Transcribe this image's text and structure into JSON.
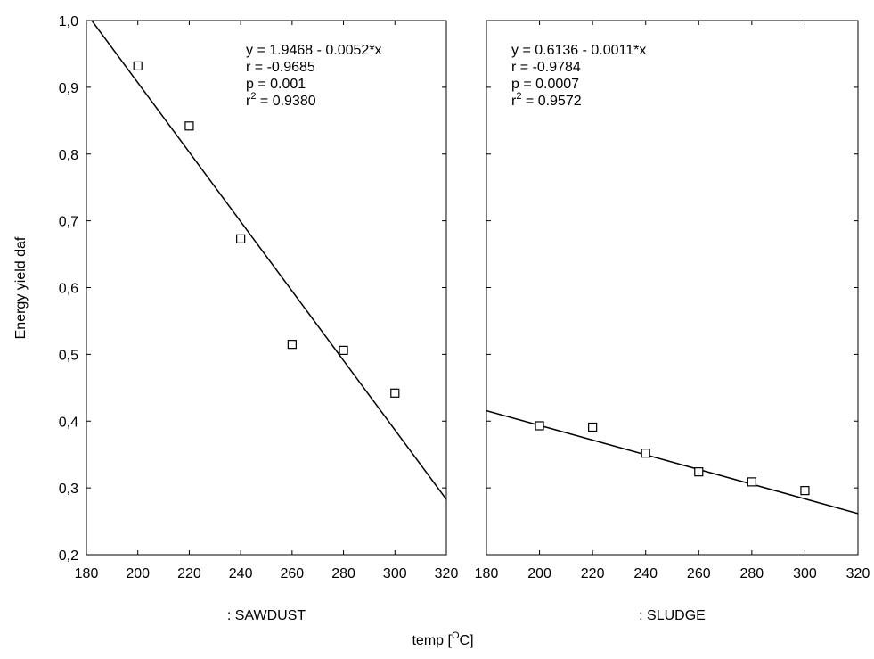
{
  "chart_data": {
    "type": "scatter",
    "xlabel": "temp [",
    "xlabel_sup": "O",
    "xlabel_end": "C]",
    "ylabel": "Energy yield daf",
    "xlim": [
      180,
      320
    ],
    "ylim": [
      0.2,
      1.0
    ],
    "x_ticks": [
      "180",
      "200",
      "220",
      "240",
      "260",
      "280",
      "300",
      "320"
    ],
    "y_ticks": [
      "0,2",
      "0,3",
      "0,4",
      "0,5",
      "0,6",
      "0,7",
      "0,8",
      "0,9",
      "1,0"
    ],
    "grid": false,
    "colors": {
      "axis": "#000000",
      "marker": "#000000",
      "line": "#000000",
      "background": "#ffffff"
    },
    "panels": [
      {
        "label": ": SAWDUST",
        "points": {
          "x": [
            200,
            220,
            240,
            260,
            280,
            300
          ],
          "y": [
            0.932,
            0.842,
            0.673,
            0.515,
            0.506,
            0.442
          ]
        },
        "fit": {
          "intercept": 1.9468,
          "slope": -0.0052
        },
        "stats": [
          {
            "base": "y = 1.9468 - 0.0052*x",
            "sup": "",
            "tail": ""
          },
          {
            "base": "r = -0.9685",
            "sup": "",
            "tail": ""
          },
          {
            "base": "p = 0.001",
            "sup": "",
            "tail": ""
          },
          {
            "base": "r",
            "sup": "2",
            "tail": " = 0.9380"
          }
        ]
      },
      {
        "label": ": SLUDGE",
        "points": {
          "x": [
            200,
            220,
            240,
            260,
            280,
            300
          ],
          "y": [
            0.393,
            0.391,
            0.352,
            0.324,
            0.309,
            0.296
          ]
        },
        "fit": {
          "intercept": 0.6136,
          "slope": -0.0011
        },
        "stats": [
          {
            "base": "y = 0.6136 - 0.0011*x",
            "sup": "",
            "tail": ""
          },
          {
            "base": "r = -0.9784",
            "sup": "",
            "tail": ""
          },
          {
            "base": "p = 0.0007",
            "sup": "",
            "tail": ""
          },
          {
            "base": "r",
            "sup": "2",
            "tail": " = 0.9572"
          }
        ]
      }
    ]
  }
}
